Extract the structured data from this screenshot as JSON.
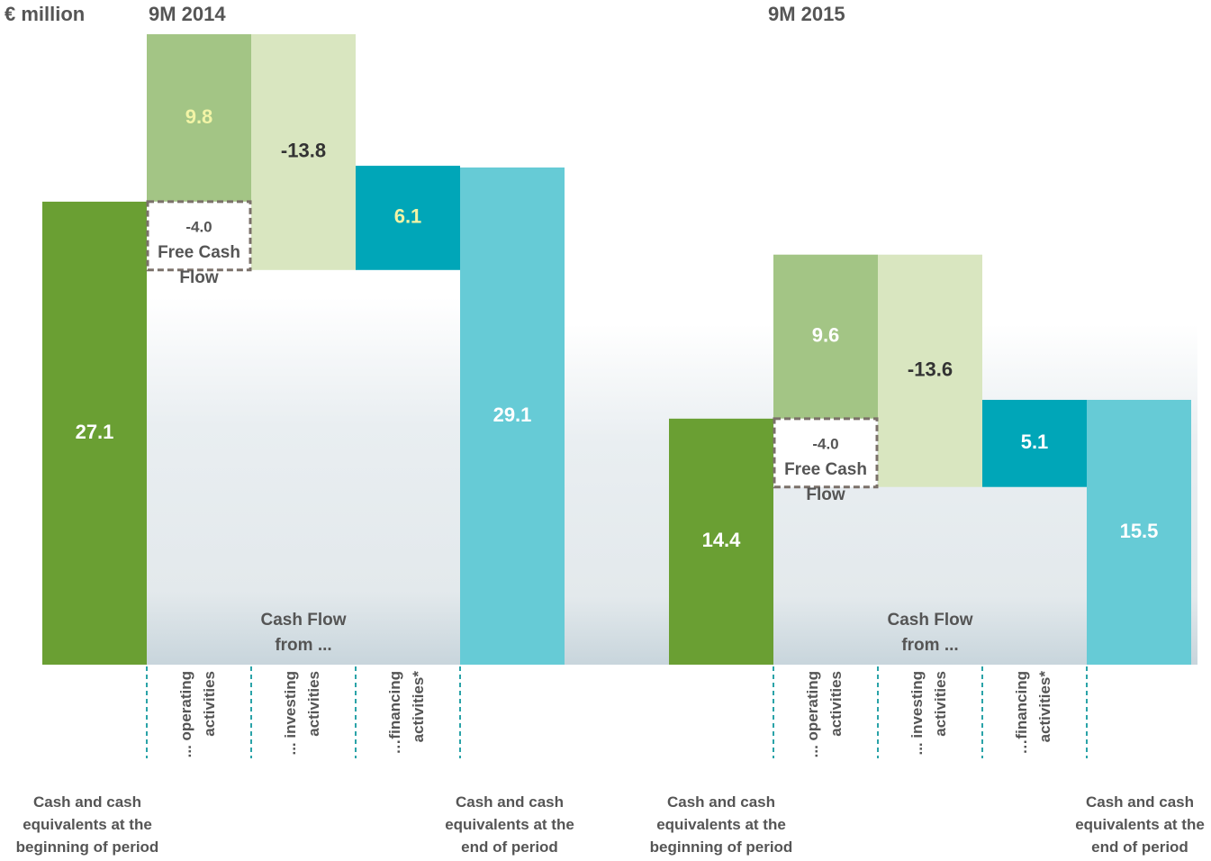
{
  "unit": "€ million",
  "chart_data": [
    {
      "type": "waterfall",
      "title": "9M 2014",
      "categories": [
        "Cash and cash equivalents at the beginning of period",
        "... operating activities",
        "... investing activities",
        "…financing activities*",
        "Cash and cash equivalents at the end of period"
      ],
      "values": [
        27.1,
        9.8,
        -13.8,
        6.1,
        29.1
      ],
      "colors": [
        "#6a9f33",
        "#a3c585",
        "#d9e6c0",
        "#00a6b8",
        "#66cbd6"
      ],
      "label_colors": [
        "#ffffff",
        "#f2f4a6",
        "#333333",
        "#f2f4a6",
        "#ffffff"
      ],
      "annotation": "Cash Flow from ...",
      "free_cash_flow": {
        "name": "Free Cash Flow",
        "value": -4.0,
        "value_label": "-4.0"
      }
    },
    {
      "type": "waterfall",
      "title": "9M 2015",
      "categories": [
        "Cash and cash equivalents at the beginning of period",
        "... operating activities",
        "... investing activities",
        "…financing activities*",
        "Cash and cash equivalents at the end of period"
      ],
      "values": [
        14.4,
        9.6,
        -13.6,
        5.1,
        15.5
      ],
      "colors": [
        "#6a9f33",
        "#a3c585",
        "#d9e6c0",
        "#00a6b8",
        "#66cbd6"
      ],
      "label_colors": [
        "#ffffff",
        "#ffffff",
        "#333333",
        "#ffffff",
        "#ffffff"
      ],
      "annotation": "Cash Flow from ...",
      "free_cash_flow": {
        "name": "Free Cash Flow",
        "value": -4.0,
        "value_label": "-4.0"
      }
    }
  ]
}
